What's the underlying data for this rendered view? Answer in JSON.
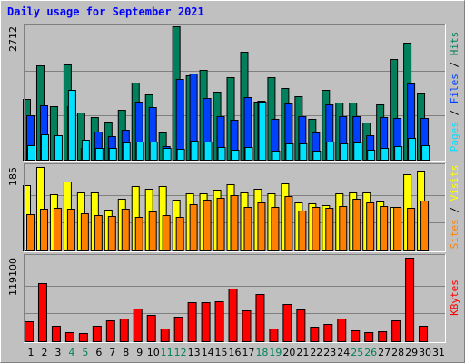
{
  "chart_data": [
    {
      "type": "bar",
      "title": "Daily usage for September 2021",
      "legend_separator": " / ",
      "ylim": [
        0,
        2712
      ],
      "yticks": [
        2712
      ],
      "ygrid": [
        904,
        1808
      ],
      "series": [
        {
          "name": "Hits",
          "color": "#00805c",
          "values": [
            1236,
            1919,
            1089,
            1937,
            959,
            867,
            775,
            1015,
            1568,
            1328,
            553,
            2712,
            1716,
            1826,
            1384,
            1679,
            2195,
            1181,
            1679,
            1458,
            1291,
            830,
            1421,
            1162,
            1162,
            756,
            1125,
            2048,
            2380,
            1347,
            null
          ]
        },
        {
          "name": "Files",
          "color": "#0040ff",
          "values": [
            904,
            1107,
            498,
            1089,
            240,
            572,
            480,
            609,
            1181,
            1070,
            277,
            1642,
            1753,
            1255,
            886,
            812,
            1273,
            1200,
            830,
            1144,
            886,
            553,
            1125,
            886,
            886,
            498,
            867,
            849,
            1550,
            849,
            null
          ]
        },
        {
          "name": "Pages",
          "color": "#00e0ff",
          "values": [
            295,
            517,
            498,
            1421,
            406,
            240,
            240,
            351,
            369,
            369,
            240,
            221,
            387,
            369,
            258,
            203,
            258,
            1181,
            185,
            332,
            332,
            185,
            369,
            332,
            351,
            203,
            240,
            277,
            443,
            295,
            null
          ]
        }
      ]
    },
    {
      "type": "bar",
      "ylim": [
        0,
        185
      ],
      "yticks": [
        185
      ],
      "ygrid": [
        62,
        123
      ],
      "series": [
        {
          "name": "Visits",
          "color": "#ffff00",
          "values": [
            145,
            185,
            125,
            153,
            129,
            129,
            90,
            115,
            143,
            137,
            143,
            113,
            127,
            127,
            135,
            147,
            129,
            137,
            127,
            149,
            107,
            105,
            101,
            127,
            129,
            129,
            109,
            97,
            169,
            177,
            null
          ]
        },
        {
          "name": "Sites",
          "color": "#ff8000",
          "values": [
            80,
            92,
            94,
            92,
            82,
            78,
            76,
            92,
            74,
            86,
            78,
            74,
            103,
            113,
            117,
            123,
            97,
            107,
            97,
            121,
            88,
            97,
            94,
            99,
            115,
            107,
            99,
            97,
            94,
            111,
            null
          ]
        }
      ]
    },
    {
      "type": "bar",
      "ylim": [
        0,
        119100
      ],
      "yticks": [
        119100
      ],
      "ygrid": [
        39700,
        79400
      ],
      "categories": [
        "1",
        "2",
        "3",
        "4",
        "5",
        "6",
        "7",
        "8",
        "9",
        "10",
        "11",
        "12",
        "13",
        "14",
        "15",
        "16",
        "17",
        "18",
        "19",
        "20",
        "21",
        "22",
        "23",
        "24",
        "25",
        "26",
        "27",
        "28",
        "29",
        "30",
        "31"
      ],
      "category_colors": [
        "#000000",
        "#000000",
        "#000000",
        "#00805c",
        "#00805c",
        "#000000",
        "#000000",
        "#000000",
        "#000000",
        "#000000",
        "#00805c",
        "#00805c",
        "#000000",
        "#000000",
        "#000000",
        "#000000",
        "#000000",
        "#00805c",
        "#00805c",
        "#000000",
        "#000000",
        "#000000",
        "#000000",
        "#000000",
        "#00805c",
        "#00805c",
        "#000000",
        "#000000",
        "#000000",
        "#000000",
        "#000000"
      ],
      "series": [
        {
          "name": "KBytes",
          "color": "#ff0000",
          "values": [
            28482,
            82852,
            22008,
            12946,
            11651,
            22008,
            29776,
            32364,
            46604,
            37542,
            18124,
            34953,
            55666,
            55666,
            56960,
            75085,
            44015,
            67317,
            18124,
            53077,
            45309,
            20713,
            24597,
            32364,
            15535,
            12946,
            14240,
            29776,
            119100,
            22008,
            null
          ]
        }
      ]
    }
  ]
}
